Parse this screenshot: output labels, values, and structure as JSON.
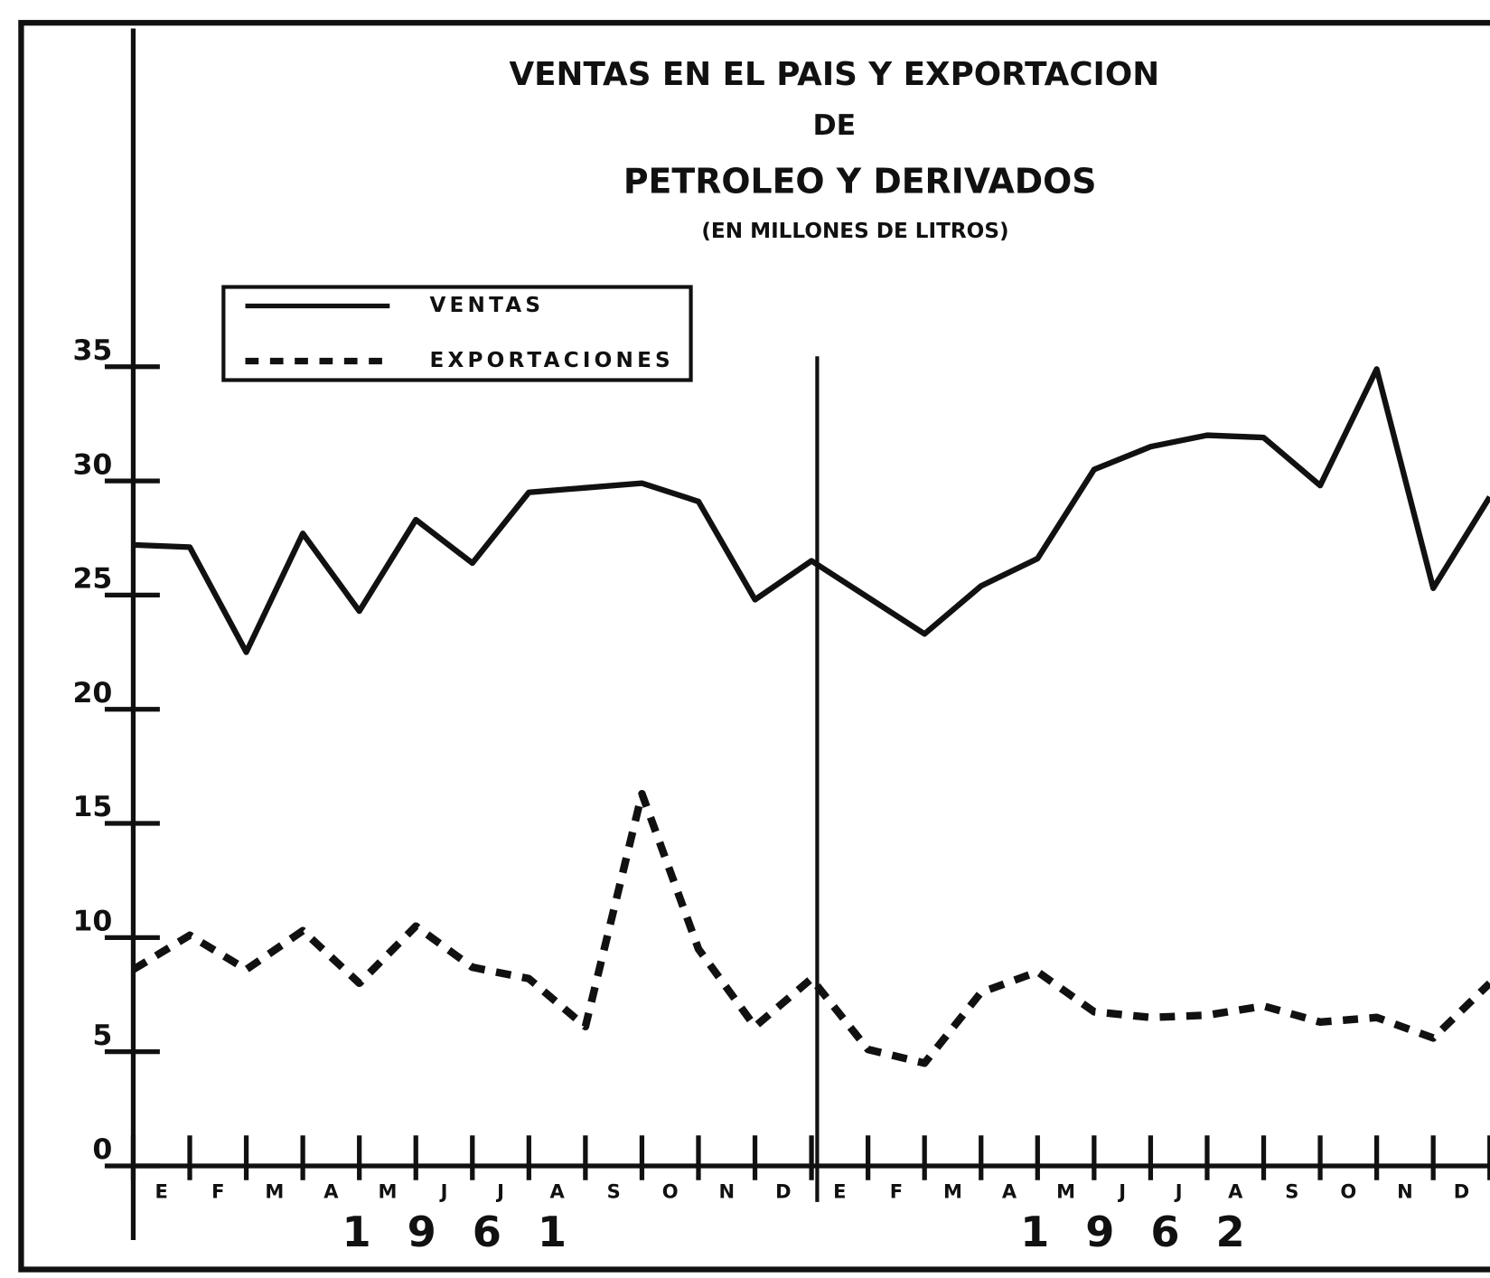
{
  "chart_data": {
    "type": "line",
    "title": "VENTAS EN EL PAIS Y EXPORTACION",
    "subtitle": "DE",
    "subtitle2": "PETROLEO Y DERIVADOS",
    "unit_label": "(EN MILLONES DE LITROS)",
    "categories": [
      null,
      "E",
      "F",
      "M",
      "A",
      "M",
      "J",
      "J",
      "A",
      "S",
      "O",
      "N",
      "D",
      "E",
      "F",
      "M",
      "A",
      "M",
      "J",
      "J",
      "A",
      "S",
      "O",
      "N",
      "D"
    ],
    "year_labels": [
      "1961",
      "1962"
    ],
    "series": [
      {
        "name": "VENTAS",
        "color": "#111111",
        "style": "solid",
        "values": [
          27.2,
          27.1,
          22.5,
          27.7,
          24.3,
          28.3,
          26.4,
          29.5,
          29.7,
          29.9,
          29.1,
          24.8,
          26.5,
          24.9,
          23.3,
          25.4,
          26.6,
          30.5,
          31.5,
          32,
          31.9,
          29.8,
          34.9,
          25.3,
          29.3
        ]
      },
      {
        "name": "EXPORTACIONES",
        "color": "#111111",
        "style": "dashed",
        "values": [
          8.6,
          10.1,
          8.6,
          10.3,
          8.0,
          10.5,
          8.7,
          8.2,
          6.1,
          16.3,
          9.5,
          6.1,
          8.2,
          5.1,
          4.5,
          7.6,
          8.5,
          6.75,
          6.5,
          6.6,
          7.0,
          6.3,
          6.5,
          5.6,
          8.0
        ]
      }
    ],
    "ylim": [
      0,
      35
    ],
    "yticks": [
      0,
      5,
      10,
      15,
      20,
      25,
      30,
      35
    ],
    "legend": "upper left",
    "grid": false
  }
}
